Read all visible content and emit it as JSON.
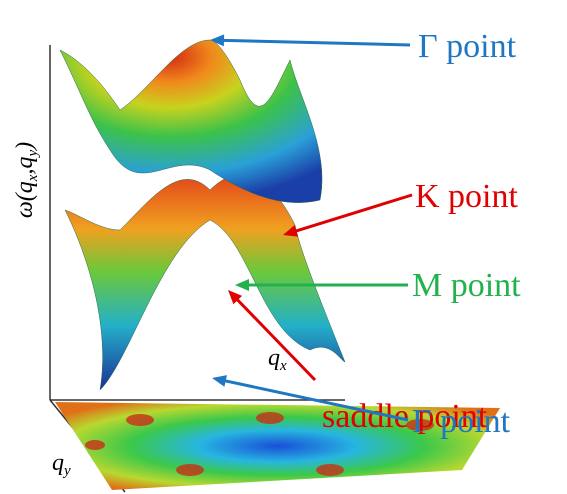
{
  "axis_labels": {
    "z": [
      "ω(q",
      "x",
      ",q",
      "y",
      ")"
    ],
    "x": [
      "q",
      "x"
    ],
    "y": [
      "q",
      "y"
    ]
  },
  "annotations": [
    {
      "label": "Γ point",
      "color": "#1f77c4"
    },
    {
      "label": "K point",
      "color": "#e00000"
    },
    {
      "label": "M point",
      "color": "#22b14c"
    },
    {
      "label": "saddle point",
      "color": "#e00000"
    },
    {
      "label": "Γ point",
      "color": "#1f77c4"
    }
  ]
}
